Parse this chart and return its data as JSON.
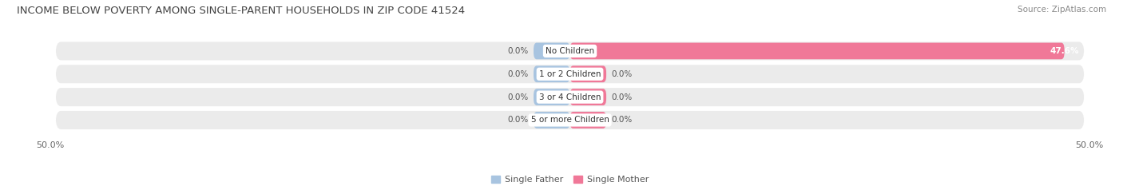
{
  "title": "INCOME BELOW POVERTY AMONG SINGLE-PARENT HOUSEHOLDS IN ZIP CODE 41524",
  "source": "Source: ZipAtlas.com",
  "categories": [
    "No Children",
    "1 or 2 Children",
    "3 or 4 Children",
    "5 or more Children"
  ],
  "single_father": [
    0.0,
    0.0,
    0.0,
    0.0
  ],
  "single_mother": [
    47.6,
    0.0,
    0.0,
    0.0
  ],
  "father_color": "#a8c4e0",
  "mother_color": "#f07898",
  "row_bg_color": "#ebebeb",
  "xlim": [
    -50,
    50
  ],
  "xtick_left": -50.0,
  "xtick_right": 50.0,
  "title_fontsize": 9.5,
  "source_fontsize": 7.5,
  "label_fontsize": 7.5,
  "category_fontsize": 7.5,
  "tick_fontsize": 8,
  "legend_fontsize": 8,
  "father_stub": 3.5,
  "mother_stub": 3.5
}
